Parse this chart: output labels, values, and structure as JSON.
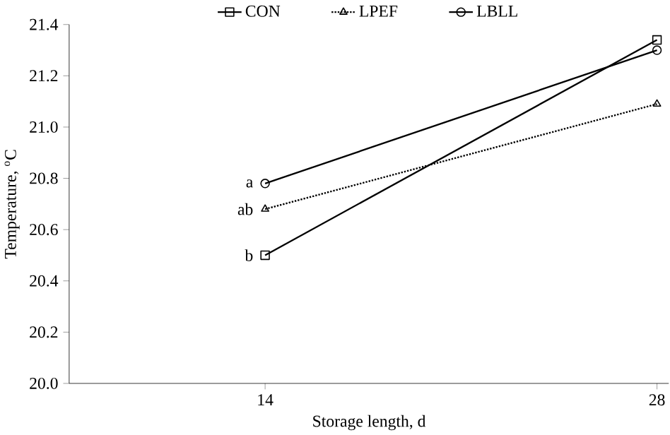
{
  "chart_data": {
    "type": "line",
    "xlabel": "Storage length, d",
    "ylabel": "Temperature, $^{o}$C",
    "categories": [
      "14",
      "28"
    ],
    "series": [
      {
        "name": "CON",
        "color": "#000000",
        "values": [
          20.5,
          21.34
        ],
        "marker": "square",
        "line_style": "solid"
      },
      {
        "name": "LPEF",
        "color": "#000000",
        "values": [
          20.68,
          21.09
        ],
        "marker": "triangle",
        "line_style": "dotted"
      },
      {
        "name": "LBLL",
        "color": "#000000",
        "values": [
          20.78,
          21.3
        ],
        "marker": "circle",
        "line_style": "solid"
      }
    ],
    "ylim": [
      20.0,
      21.4
    ],
    "yticks": [
      {
        "value": 20.0,
        "label": "20.0"
      },
      20.2,
      20.4,
      20.6,
      20.8,
      {
        "value": 21.0,
        "label": "21.0"
      },
      21.2,
      21.4
    ],
    "legend": "top",
    "grid": false,
    "annotations": [
      {
        "text": "a",
        "x": "14",
        "y": 20.78
      },
      {
        "text": "ab",
        "x": "14",
        "y": 20.68
      },
      {
        "text": "b",
        "x": "14",
        "y": 20.5
      }
    ]
  }
}
